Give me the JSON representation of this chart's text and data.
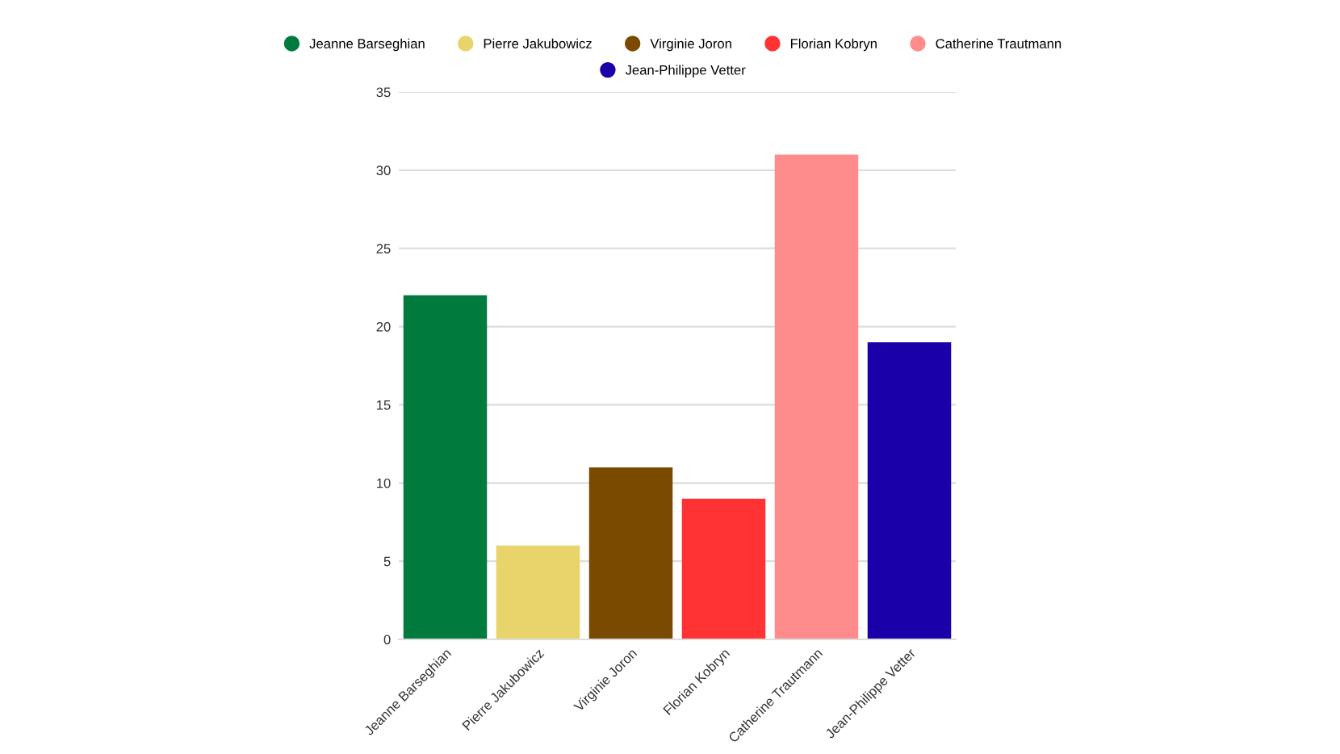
{
  "chart_data": {
    "type": "bar",
    "categories": [
      "Jeanne Barseghian",
      "Pierre Jakubowicz",
      "Virginie Joron",
      "Florian Kobryn",
      "Catherine Trautmann",
      "Jean-Philippe Vetter"
    ],
    "series": [
      {
        "name": "Jeanne Barseghian",
        "color": "#007a3d",
        "values": [
          22,
          null,
          null,
          null,
          null,
          null
        ]
      },
      {
        "name": "Pierre Jakubowicz",
        "color": "#e8d46a",
        "values": [
          null,
          6,
          null,
          null,
          null,
          null
        ]
      },
      {
        "name": "Virginie Joron",
        "color": "#7a4a00",
        "values": [
          null,
          null,
          11,
          null,
          null,
          null
        ]
      },
      {
        "name": "Florian Kobryn",
        "color": "#ff3333",
        "values": [
          null,
          null,
          null,
          9,
          null,
          null
        ]
      },
      {
        "name": "Catherine Trautmann",
        "color": "#ff8c8c",
        "values": [
          null,
          null,
          null,
          null,
          31,
          null
        ]
      },
      {
        "name": "Jean-Philippe Vetter",
        "color": "#1a00a8",
        "values": [
          null,
          null,
          null,
          null,
          null,
          19
        ]
      }
    ],
    "ylim": [
      0,
      35
    ],
    "yticks": [
      0,
      5,
      10,
      15,
      20,
      25,
      30,
      35
    ],
    "grid": "y",
    "legend": "top"
  }
}
